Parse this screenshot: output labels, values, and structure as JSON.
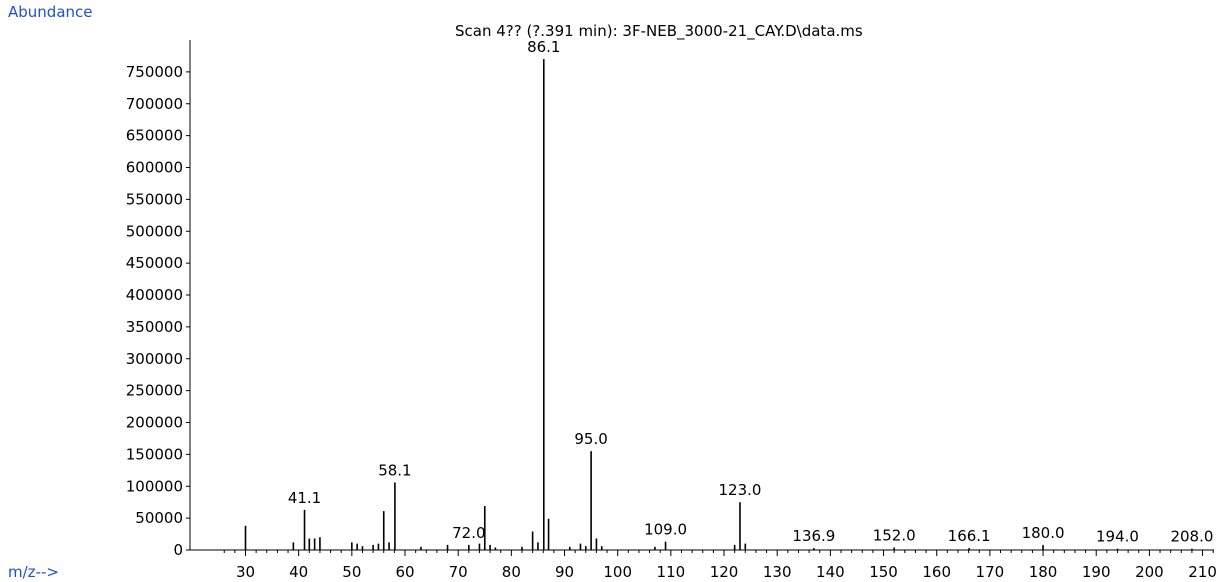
{
  "chart_data": {
    "type": "bar",
    "title": "Scan 4?? (?.391 min): 3F-NEB_3000-21_CAY.D\\data.ms",
    "ylabel": "Abundance",
    "xlabel": "m/z-->",
    "xlim": [
      25,
      214
    ],
    "ylim": [
      0,
      800000
    ],
    "yticks": [
      0,
      50000,
      100000,
      150000,
      200000,
      250000,
      300000,
      350000,
      400000,
      450000,
      500000,
      550000,
      600000,
      650000,
      700000,
      750000
    ],
    "xticks": [
      30,
      40,
      50,
      60,
      70,
      80,
      90,
      100,
      110,
      120,
      130,
      140,
      150,
      160,
      170,
      180,
      190,
      200,
      210
    ],
    "peaks": [
      {
        "mz": 30,
        "abundance": 38000
      },
      {
        "mz": 39,
        "abundance": 12000
      },
      {
        "mz": 41.1,
        "abundance": 63000,
        "label": "41.1"
      },
      {
        "mz": 42,
        "abundance": 18000
      },
      {
        "mz": 43,
        "abundance": 18000
      },
      {
        "mz": 44,
        "abundance": 20000
      },
      {
        "mz": 50,
        "abundance": 12000
      },
      {
        "mz": 51,
        "abundance": 10000
      },
      {
        "mz": 52,
        "abundance": 6000
      },
      {
        "mz": 54,
        "abundance": 8000
      },
      {
        "mz": 55,
        "abundance": 10000
      },
      {
        "mz": 56,
        "abundance": 61000
      },
      {
        "mz": 57,
        "abundance": 12000
      },
      {
        "mz": 58.1,
        "abundance": 106000,
        "label": "58.1"
      },
      {
        "mz": 63,
        "abundance": 5000
      },
      {
        "mz": 68,
        "abundance": 8000
      },
      {
        "mz": 72.0,
        "abundance": 8000,
        "label": "72.0"
      },
      {
        "mz": 74,
        "abundance": 10000
      },
      {
        "mz": 75,
        "abundance": 69000
      },
      {
        "mz": 76,
        "abundance": 8000
      },
      {
        "mz": 77,
        "abundance": 4000
      },
      {
        "mz": 82,
        "abundance": 5000
      },
      {
        "mz": 84,
        "abundance": 29000
      },
      {
        "mz": 85,
        "abundance": 12000
      },
      {
        "mz": 86.1,
        "abundance": 770000,
        "label": "86.1"
      },
      {
        "mz": 87,
        "abundance": 49000
      },
      {
        "mz": 91,
        "abundance": 5000
      },
      {
        "mz": 93,
        "abundance": 10000
      },
      {
        "mz": 94,
        "abundance": 6000
      },
      {
        "mz": 95.0,
        "abundance": 155000,
        "label": "95.0"
      },
      {
        "mz": 96,
        "abundance": 18000
      },
      {
        "mz": 97,
        "abundance": 6000
      },
      {
        "mz": 107,
        "abundance": 5000
      },
      {
        "mz": 109.0,
        "abundance": 13000,
        "label": "109.0"
      },
      {
        "mz": 122,
        "abundance": 8000
      },
      {
        "mz": 123.0,
        "abundance": 75000,
        "label": "123.0"
      },
      {
        "mz": 124,
        "abundance": 10000
      },
      {
        "mz": 136.9,
        "abundance": 3000,
        "label": "136.9"
      },
      {
        "mz": 152.0,
        "abundance": 4000,
        "label": "152.0"
      },
      {
        "mz": 166.1,
        "abundance": 3000,
        "label": "166.1"
      },
      {
        "mz": 180.0,
        "abundance": 8000,
        "label": "180.0"
      },
      {
        "mz": 194.0,
        "abundance": 2000,
        "label": "194.0"
      },
      {
        "mz": 208.0,
        "abundance": 2000,
        "label": "208.0"
      }
    ]
  }
}
